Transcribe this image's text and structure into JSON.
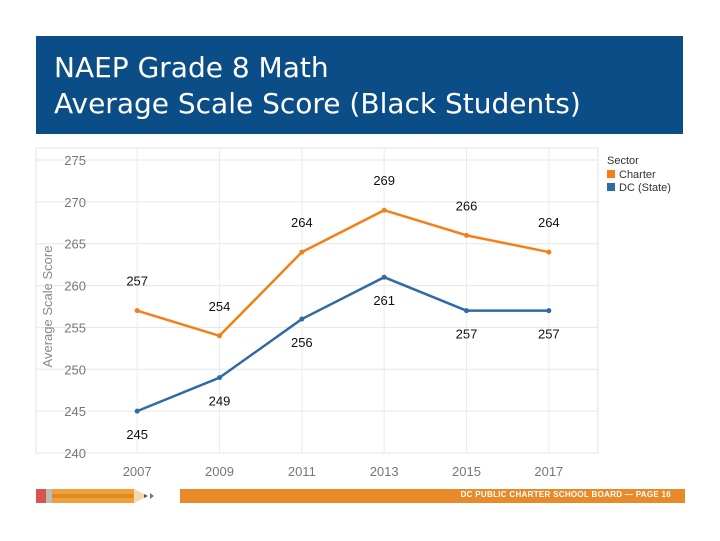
{
  "slide": {
    "title_line1": "NAEP Grade 8 Math",
    "title_line2": "Average Scale Score (Black Students)",
    "footer": "DC PUBLIC CHARTER SCHOOL BOARD — PAGE 16"
  },
  "colors": {
    "banner": "#0b4d87",
    "footer_bar": "#e88a2a",
    "charter": "#f57f17",
    "dc_state": "#2f6aa5"
  },
  "chart_data": {
    "type": "line",
    "title": "",
    "xlabel": "",
    "ylabel": "Average Scale Score",
    "categories": [
      "2007",
      "2009",
      "2011",
      "2013",
      "2015",
      "2017"
    ],
    "ylim": [
      240,
      275
    ],
    "yticks": [
      240,
      245,
      250,
      255,
      260,
      265,
      270,
      275
    ],
    "grid": true,
    "legend_title": "Sector",
    "legend_position": "top-right",
    "series": [
      {
        "name": "Charter",
        "color": "#f57f17",
        "values": [
          257,
          254,
          264,
          269,
          266,
          264
        ],
        "label_position": "above"
      },
      {
        "name": "DC (State)",
        "color": "#2f6aa5",
        "values": [
          245,
          249,
          256,
          261,
          257,
          257
        ],
        "label_position": "below"
      }
    ]
  }
}
